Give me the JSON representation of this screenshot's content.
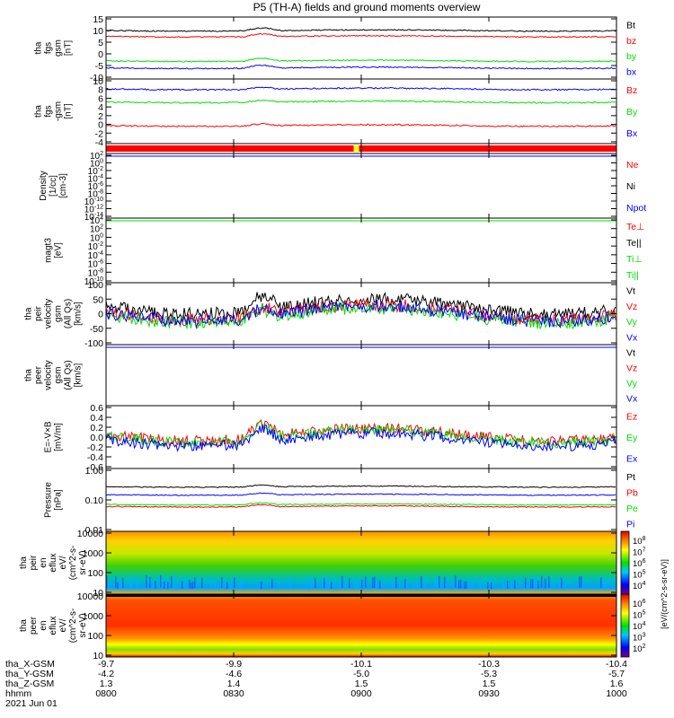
{
  "title": "P5 (TH-A) fields and ground moments overview",
  "date_label": "2021 Jun 01",
  "ephemeris": {
    "labels": [
      "tha_X-GSM",
      "tha_Y-GSM",
      "tha_Z-GSM",
      "hhmm"
    ],
    "columns": [
      {
        "x": "-9.7",
        "y": "-4.2",
        "z": "1.3",
        "hhmm": "0800"
      },
      {
        "x": "-9.9",
        "y": "-4.6",
        "z": "1.4",
        "hhmm": "0830"
      },
      {
        "x": "-10.1",
        "y": "-5.0",
        "z": "1.5",
        "hhmm": "0900"
      },
      {
        "x": "-10.3",
        "y": "-5.3",
        "z": "1.5",
        "hhmm": "0930"
      },
      {
        "x": "-10.4",
        "y": "-5.7",
        "z": "1.6",
        "hhmm": "1000"
      }
    ]
  },
  "colorbar": {
    "label": "[eV/(cm^2-s-sr-eV)]",
    "top_ticks": [
      "10^8",
      "10^7",
      "10^6",
      "10^5",
      "10^4"
    ],
    "bottom_ticks": [
      "10^6",
      "10^5",
      "10^4",
      "10^3",
      "10^2"
    ]
  },
  "colors": {
    "black": "#000000",
    "red": "#ff0000",
    "green": "#00e000",
    "blue": "#0000ff"
  },
  "chart_data": [
    {
      "type": "line",
      "panel": "fgs",
      "ylabel": [
        "tha",
        "fgs",
        "gsm",
        "[nT]"
      ],
      "ylim": [
        -10,
        15
      ],
      "yticks": [
        "15",
        "10",
        "5",
        "0",
        "-5",
        "-10"
      ],
      "series": [
        {
          "name": "Bt",
          "color": "black",
          "level": 10
        },
        {
          "name": "bz",
          "color": "red",
          "level": 7.5
        },
        {
          "name": "by",
          "color": "green",
          "level": -3
        },
        {
          "name": "bx",
          "color": "blue",
          "level": -6
        }
      ]
    },
    {
      "type": "line",
      "panel": "gmom",
      "ylabel": [
        "tha",
        "fgs",
        "-gsm",
        "[nT]"
      ],
      "ylim": [
        -5,
        10
      ],
      "yticks": [
        "10",
        "8",
        "6",
        "4",
        "2",
        "0",
        "-2",
        "-4"
      ],
      "series": [
        {
          "name": "Bz",
          "color": "red",
          "level": -1
        },
        {
          "name": "By",
          "color": "green",
          "level": 4.8
        },
        {
          "name": "Bx",
          "color": "blue",
          "level": 8
        }
      ]
    },
    {
      "type": "bar",
      "panel": "flag",
      "note": "flag bar red with short yellow segment near 0845"
    },
    {
      "type": "line",
      "panel": "density",
      "ylabel": [
        "Density",
        "[1/cc]",
        "[cm-3]"
      ],
      "yticks": [
        "10^2",
        "10^0",
        "10^-2",
        "10^-4",
        "10^-6",
        "10^-8",
        "10^-10",
        "10^-12",
        "10^-14"
      ],
      "series": [
        {
          "name": "Ne",
          "color": "red"
        },
        {
          "name": "Ni",
          "color": "black"
        },
        {
          "name": "Npot",
          "color": "blue"
        }
      ]
    },
    {
      "type": "line",
      "panel": "temperature",
      "ylabel": [
        "magt3",
        "[eV]"
      ],
      "yticks": [
        "10^4",
        "10^2",
        "10^0",
        "10^-2",
        "10^-4",
        "10^-6",
        "10^-8",
        "10^-10"
      ],
      "series": [
        {
          "name": "Te⊥",
          "color": "red"
        },
        {
          "name": "Te||",
          "color": "black"
        },
        {
          "name": "Ti⊥",
          "color": "green"
        },
        {
          "name": "Ti||",
          "color": "green"
        }
      ]
    },
    {
      "type": "line",
      "panel": "vi",
      "ylabel": [
        "tha",
        "peir",
        "velocity",
        "gsm",
        "(All Qs)",
        "[km/s]"
      ],
      "ylim": [
        -100,
        100
      ],
      "yticks": [
        "100",
        "50",
        "0",
        "-50",
        "-100"
      ],
      "series": [
        {
          "name": "Vt",
          "color": "black",
          "level": 25
        },
        {
          "name": "Vz",
          "color": "red",
          "level": 5
        },
        {
          "name": "Vy",
          "color": "green",
          "level": -5
        },
        {
          "name": "Vx",
          "color": "blue",
          "level": 0
        }
      ]
    },
    {
      "type": "line",
      "panel": "ve",
      "ylabel": [
        "tha",
        "peer",
        "velocity",
        "gsm",
        "(All Qs)",
        "[km/s]"
      ],
      "series": [
        {
          "name": "Vt",
          "color": "black"
        },
        {
          "name": "Vz",
          "color": "red"
        },
        {
          "name": "Vy",
          "color": "green"
        },
        {
          "name": "Vx",
          "color": "blue"
        }
      ]
    },
    {
      "type": "line",
      "panel": "efield",
      "ylabel": [
        "E=-V×B",
        "[mV/m]"
      ],
      "ylim": [
        -0.6,
        0.6
      ],
      "yticks": [
        "0.6",
        "0.4",
        "0.2",
        "0.0",
        "-0.2",
        "-0.4",
        "-0.6"
      ],
      "series": [
        {
          "name": "Ez",
          "color": "red",
          "level": 0.05
        },
        {
          "name": "Ey",
          "color": "green",
          "level": 0.02
        },
        {
          "name": "Ex",
          "color": "blue",
          "level": -0.05
        }
      ]
    },
    {
      "type": "line",
      "panel": "pressure",
      "ylabel": [
        "Pressure",
        "[nPa]"
      ],
      "log": true,
      "yticks": [
        "1.00",
        "0.10",
        "0.01"
      ],
      "series": [
        {
          "name": "Pt",
          "color": "black",
          "level": 0.28
        },
        {
          "name": "Pb",
          "color": "red",
          "level": 0.06
        },
        {
          "name": "Pe",
          "color": "green",
          "level": 0.07
        },
        {
          "name": "Pi",
          "color": "blue",
          "level": 0.15
        }
      ]
    },
    {
      "type": "heatmap",
      "panel": "peir_eflux",
      "ylabel": [
        "tha",
        "peir",
        "en",
        "eflux",
        "eV/",
        "(cm^2-s-",
        "sr-eV)"
      ],
      "yticks": [
        "10000",
        "1000",
        "100",
        "10"
      ]
    },
    {
      "type": "heatmap",
      "panel": "peer_eflux",
      "ylabel": [
        "tha",
        "peer",
        "en",
        "eflux",
        "eV/",
        "(cm^2-s-",
        "sr-eV)"
      ],
      "yticks": [
        "10000",
        "1000",
        "100",
        "10"
      ]
    }
  ]
}
